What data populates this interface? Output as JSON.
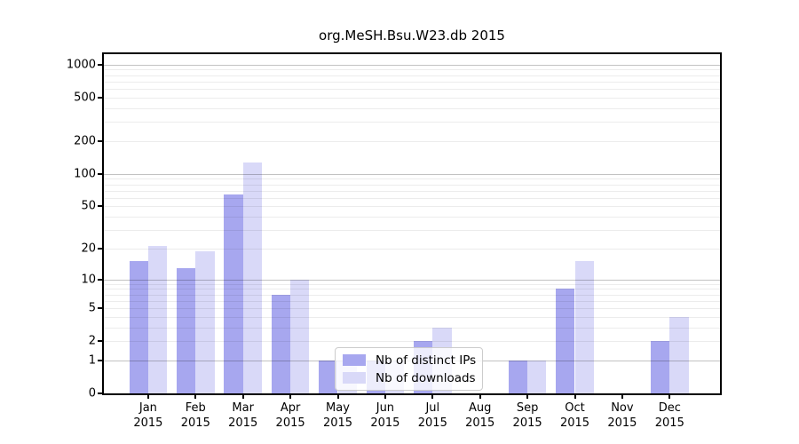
{
  "title": "org.MeSH.Bsu.W23.db 2015",
  "chart_data": {
    "type": "bar",
    "title": "org.MeSH.Bsu.W23.db 2015",
    "y_scale": "log10(value+1), 0 at axis bottom",
    "categories": [
      "Jan",
      "Feb",
      "Mar",
      "Apr",
      "May",
      "Jun",
      "Jul",
      "Aug",
      "Sep",
      "Oct",
      "Nov",
      "Dec"
    ],
    "category_year": "2015",
    "series": [
      {
        "name": "Nb of distinct IPs",
        "color": "#a7a7ef",
        "values": [
          15,
          13,
          65,
          7,
          1,
          1,
          2,
          0,
          1,
          8,
          0,
          2
        ]
      },
      {
        "name": "Nb of downloads",
        "color": "#d9d9f8",
        "values": [
          21,
          19,
          126,
          10,
          1,
          1,
          3,
          0,
          1,
          15,
          0,
          4
        ]
      }
    ],
    "yticks": [
      0,
      1,
      2,
      5,
      10,
      20,
      50,
      100,
      200,
      500,
      1000
    ],
    "ylim": [
      0,
      1250
    ],
    "grid": "major gridlines at 1,10,100,1000; faint minor gridlines at 2-9 per decade; grid drawn over bars",
    "legend_position": "lower center"
  },
  "colors": {
    "distinct_ips": "#a7a7ef",
    "downloads": "#d9d9f8",
    "major_grid": "#c2c2c2",
    "minor_grid": "#ececec",
    "spine": "#000000",
    "background": "#ffffff"
  }
}
